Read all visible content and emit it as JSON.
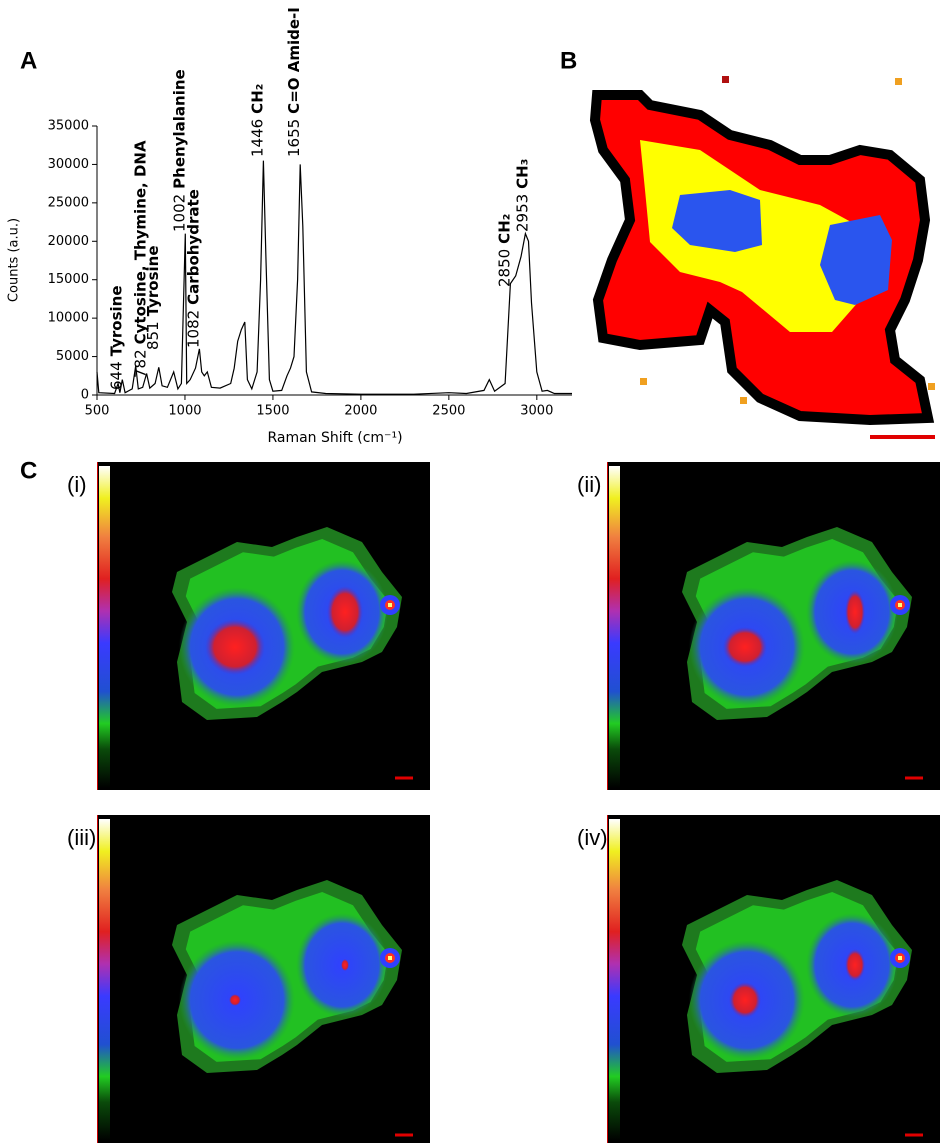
{
  "chart_data": {
    "type": "line",
    "xlabel": "Raman Shift (cm⁻¹)",
    "ylabel": "Counts (a.u.)",
    "x": [
      500,
      510,
      600,
      620,
      630,
      644,
      660,
      700,
      720,
      735,
      760,
      782,
      800,
      830,
      851,
      870,
      900,
      936,
      960,
      980,
      1002,
      1010,
      1030,
      1060,
      1082,
      1095,
      1110,
      1127,
      1150,
      1200,
      1260,
      1280,
      1300,
      1320,
      1340,
      1355,
      1380,
      1410,
      1430,
      1446,
      1460,
      1480,
      1500,
      1550,
      1580,
      1600,
      1620,
      1640,
      1655,
      1670,
      1690,
      1720,
      1800,
      2000,
      2300,
      2500,
      2600,
      2700,
      2730,
      2760,
      2820,
      2850,
      2880,
      2910,
      2935,
      2953,
      2970,
      3000,
      3030,
      3060,
      3100,
      3200
    ],
    "values": [
      3000,
      300,
      200,
      1500,
      300,
      2000,
      300,
      800,
      3800,
      800,
      1000,
      2800,
      900,
      1500,
      3600,
      1200,
      1000,
      3000,
      800,
      1500,
      21000,
      1500,
      2000,
      3500,
      6000,
      3000,
      2500,
      3000,
      1000,
      900,
      1500,
      3500,
      7000,
      8500,
      9500,
      2000,
      800,
      3000,
      15000,
      30500,
      18000,
      2000,
      500,
      600,
      2500,
      3500,
      5000,
      15000,
      30000,
      22000,
      3000,
      400,
      200,
      100,
      100,
      300,
      200,
      600,
      2000,
      500,
      1500,
      14500,
      15500,
      18000,
      21000,
      20000,
      12000,
      3000,
      500,
      600,
      200,
      200
    ],
    "color": "#000000",
    "xlim": [
      500,
      3200
    ],
    "ylim": [
      0,
      35000
    ],
    "xticks": [
      500,
      1000,
      1500,
      2000,
      2500,
      3000
    ],
    "yticks": [
      0,
      5000,
      10000,
      15000,
      20000,
      25000,
      30000,
      35000
    ],
    "annotations": [
      {
        "x": 644,
        "label": "Tyrosine"
      },
      {
        "x": 782,
        "label": "Cytosine, Thymine, DNA"
      },
      {
        "x": 851,
        "label": "Tyrosine"
      },
      {
        "x": 1002,
        "label": "Phenylalanine"
      },
      {
        "x": 1082,
        "label": "Carbohydrate"
      },
      {
        "x": 1446,
        "label": "CH₂"
      },
      {
        "x": 1655,
        "label": "C=O Amide-I"
      },
      {
        "x": 2850,
        "label": "CH₂"
      },
      {
        "x": 2953,
        "label": "CH₃"
      }
    ]
  },
  "panel_labels": [
    "A",
    "B",
    "C"
  ],
  "map_labels": [
    "(i)",
    "(ii)",
    "(iii)",
    "(iv)"
  ]
}
